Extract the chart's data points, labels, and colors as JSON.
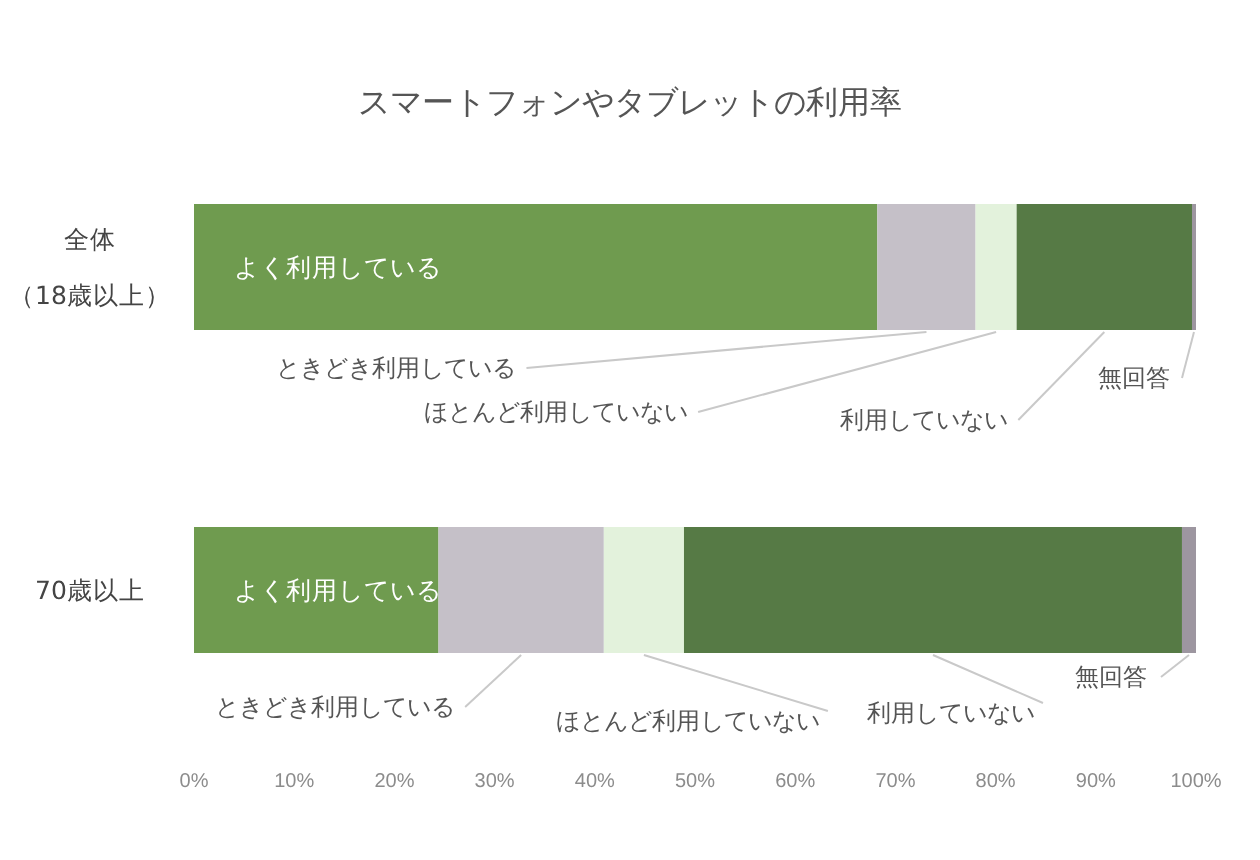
{
  "chart_data": {
    "type": "bar",
    "orientation": "horizontal",
    "stacked": true,
    "title": "スマートフォンやタブレットの利用率",
    "categories": [
      "全体（18歳以上）",
      "70歳以上"
    ],
    "series": [
      {
        "name": "よく利用している",
        "color": "#6f9b4f",
        "values": [
          68.2,
          24.4
        ]
      },
      {
        "name": "ときどき利用している",
        "color": "#c5c0c8",
        "values": [
          9.8,
          16.5
        ]
      },
      {
        "name": "ほとんど利用していない",
        "color": "#e3f2dc",
        "values": [
          4.1,
          8.0
        ]
      },
      {
        "name": "利用していない",
        "color": "#567a45",
        "values": [
          17.5,
          49.7
        ]
      },
      {
        "name": "無回答",
        "color": "#9d96a0",
        "values": [
          0.4,
          1.4
        ]
      }
    ],
    "xlim": [
      0,
      100
    ],
    "xticks": [
      {
        "value": 0,
        "label": "0%"
      },
      {
        "value": 10,
        "label": "10%"
      },
      {
        "value": 20,
        "label": "20%"
      },
      {
        "value": 30,
        "label": "30%"
      },
      {
        "value": 40,
        "label": "40%"
      },
      {
        "value": 50,
        "label": "50%"
      },
      {
        "value": 60,
        "label": "60%"
      },
      {
        "value": 70,
        "label": "70%"
      },
      {
        "value": 80,
        "label": "80%"
      },
      {
        "value": 90,
        "label": "90%"
      },
      {
        "value": 100,
        "label": "100%"
      }
    ]
  }
}
